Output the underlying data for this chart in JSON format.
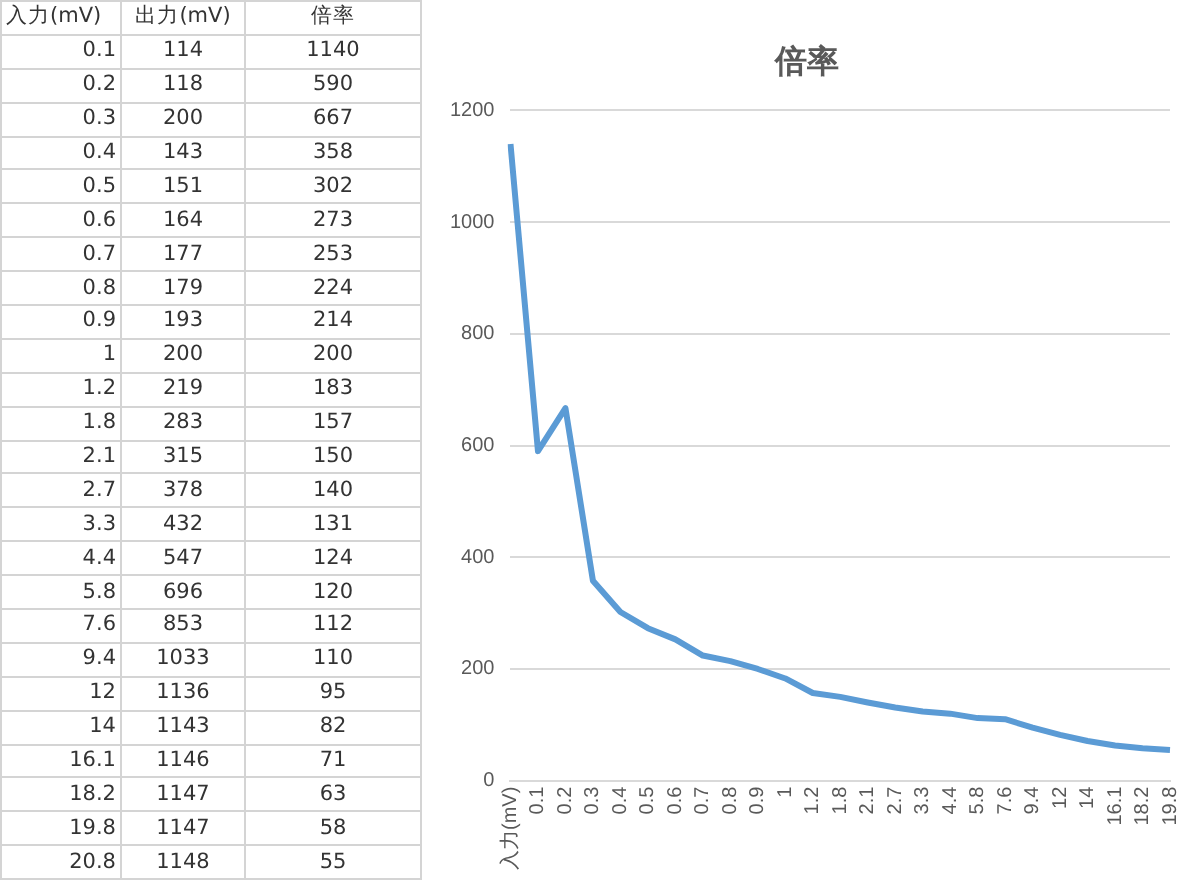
{
  "chart_data": [
    {
      "type": "heatmap",
      "ylabel": "入力(mV)",
      "categories": [
        "出力(mV)",
        "倍率"
      ],
      "color": "#ffffff",
      "data_labels": true,
      "y_categories": [
        "0.1",
        "0.2",
        "0.3",
        "0.4",
        "0.5",
        "0.6",
        "0.7",
        "0.8",
        "0.9",
        "1",
        "1.2",
        "1.8",
        "2.1",
        "2.7",
        "3.3",
        "4.4",
        "5.8",
        "7.6",
        "9.4",
        "12",
        "14",
        "16.1",
        "18.2",
        "19.8",
        "20.8"
      ],
      "cells": [
        [
          114,
          1140
        ],
        [
          118,
          590
        ],
        [
          200,
          667
        ],
        [
          143,
          358
        ],
        [
          151,
          302
        ],
        [
          164,
          273
        ],
        [
          177,
          253
        ],
        [
          179,
          224
        ],
        [
          193,
          214
        ],
        [
          200,
          200
        ],
        [
          219,
          183
        ],
        [
          283,
          157
        ],
        [
          315,
          150
        ],
        [
          378,
          140
        ],
        [
          432,
          131
        ],
        [
          547,
          124
        ],
        [
          696,
          120
        ],
        [
          853,
          112
        ],
        [
          1033,
          110
        ],
        [
          1136,
          95
        ],
        [
          1143,
          82
        ],
        [
          1146,
          71
        ],
        [
          1147,
          63
        ],
        [
          1147,
          58
        ],
        [
          1148,
          55
        ]
      ]
    },
    {
      "type": "line",
      "title": "倍率",
      "categories": [
        "入力(mV)",
        "0.1",
        "0.2",
        "0.3",
        "0.4",
        "0.5",
        "0.6",
        "0.7",
        "0.8",
        "0.9",
        "1",
        "1.2",
        "1.8",
        "2.1",
        "2.7",
        "3.3",
        "4.4",
        "5.8",
        "7.6",
        "9.4",
        "12",
        "14",
        "16.1",
        "18.2",
        "19.8"
      ],
      "values": [
        1140,
        590,
        667,
        358,
        302,
        273,
        253,
        224,
        214,
        200,
        183,
        157,
        150,
        140,
        131,
        124,
        120,
        112,
        110,
        95,
        82,
        71,
        63,
        58,
        55
      ],
      "color": "#5b9bd5",
      "ylim": [
        0,
        1200
      ],
      "yticks": [
        0,
        200,
        400,
        600,
        800,
        1000,
        1200
      ],
      "grid": "y",
      "legend": false,
      "marker": "none",
      "line_style": "solid"
    }
  ]
}
